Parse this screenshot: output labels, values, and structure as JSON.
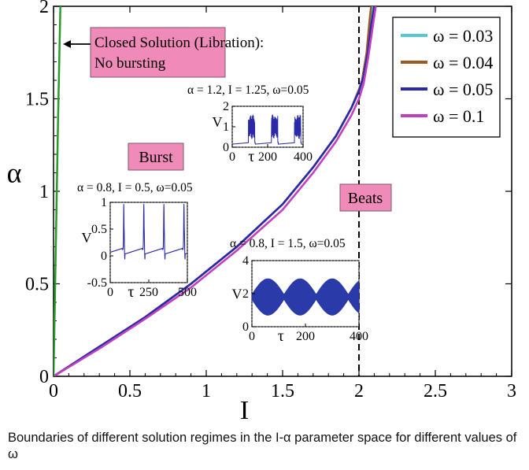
{
  "chart_data": {
    "type": "line",
    "xlabel": "I",
    "ylabel": "α",
    "xlim": [
      0,
      3
    ],
    "ylim": [
      0,
      2
    ],
    "xticks": [
      "0",
      "0.5",
      "1",
      "1.5",
      "2",
      "2.5",
      "3"
    ],
    "yticks": [
      "0",
      "0.5",
      "1",
      "1.5",
      "2"
    ],
    "grid": false,
    "legend_position": "top-right",
    "series": [
      {
        "name": "ω = 0.03",
        "color": "#55c8d8",
        "x": [
          0,
          0.3,
          0.6,
          0.9,
          1.2,
          1.5,
          1.7,
          1.85,
          1.95,
          2.0,
          2.02,
          2.05,
          2.08,
          2.09
        ],
        "y": [
          0,
          0.16,
          0.32,
          0.5,
          0.7,
          0.93,
          1.13,
          1.3,
          1.45,
          1.55,
          1.6,
          1.73,
          1.92,
          2.0
        ]
      },
      {
        "name": "ω = 0.04",
        "color": "#9a5a28",
        "x": [
          0,
          0.3,
          0.6,
          0.9,
          1.2,
          1.5,
          1.7,
          1.85,
          1.95,
          2.0,
          2.02,
          2.05,
          2.07,
          2.08
        ],
        "y": [
          0,
          0.16,
          0.32,
          0.5,
          0.7,
          0.93,
          1.13,
          1.3,
          1.45,
          1.55,
          1.6,
          1.75,
          1.93,
          2.0
        ]
      },
      {
        "name": "ω = 0.05",
        "color": "#2a2aa8",
        "x": [
          0,
          0.3,
          0.6,
          0.9,
          1.2,
          1.5,
          1.7,
          1.85,
          1.95,
          2.0,
          2.03,
          2.06,
          2.08,
          2.1
        ],
        "y": [
          0,
          0.16,
          0.32,
          0.5,
          0.7,
          0.93,
          1.13,
          1.3,
          1.45,
          1.54,
          1.62,
          1.76,
          1.9,
          2.0
        ]
      },
      {
        "name": "ω = 0.1",
        "color": "#c040c0",
        "x": [
          0,
          0.3,
          0.6,
          0.9,
          1.2,
          1.5,
          1.7,
          1.85,
          1.95,
          2.0,
          2.03,
          2.06,
          2.09,
          2.11
        ],
        "y": [
          0,
          0.15,
          0.31,
          0.48,
          0.68,
          0.9,
          1.1,
          1.27,
          1.41,
          1.5,
          1.58,
          1.72,
          1.89,
          2.0
        ]
      },
      {
        "color": "#2a9a2a",
        "x": [
          0,
          0.015,
          0.03,
          0.045
        ],
        "y": [
          0,
          0.7,
          1.4,
          2.0
        ]
      }
    ],
    "vertical_line": {
      "x": 2.0,
      "style": "dashed",
      "color": "#000000"
    },
    "annotations": {
      "closed_solution_line1": "Closed Solution (Libration):",
      "closed_solution_line2": "No bursting",
      "burst": "Burst",
      "beats": "Beats"
    },
    "insets": [
      {
        "id": "inset-a",
        "type": "line",
        "params": "α = 1.2,  I = 1.25, ω=0.05",
        "ylabel": "V",
        "xlabel": "τ",
        "xlim": [
          0,
          400
        ],
        "ylim": [
          0,
          2
        ],
        "xticks": [
          "0",
          "200",
          "400"
        ],
        "yticks": [
          "0",
          "1",
          "2"
        ],
        "color": "#2a2aa8"
      },
      {
        "id": "inset-b",
        "type": "line",
        "params": "α = 0.8,  I = 0.5, ω=0.05",
        "ylabel": "V",
        "xlabel": "τ",
        "xlim": [
          0,
          500
        ],
        "ylim": [
          -0.5,
          1
        ],
        "xticks": [
          "0",
          "250",
          "500"
        ],
        "yticks": [
          "-0.5",
          "0",
          "0.5",
          "1"
        ],
        "color": "#2a2aa8"
      },
      {
        "id": "inset-c",
        "type": "line",
        "params": "α = 0.8,  I = 1.5, ω=0.05",
        "ylabel": "V",
        "xlabel": "τ",
        "xlim": [
          0,
          400
        ],
        "ylim": [
          0,
          4
        ],
        "xticks": [
          "0",
          "200",
          "400"
        ],
        "yticks": [
          "0",
          "2",
          "4"
        ],
        "color": "#2a3aa8"
      }
    ]
  },
  "caption": "Boundaries of different solution regimes in the I-α parameter space for different values of ω"
}
